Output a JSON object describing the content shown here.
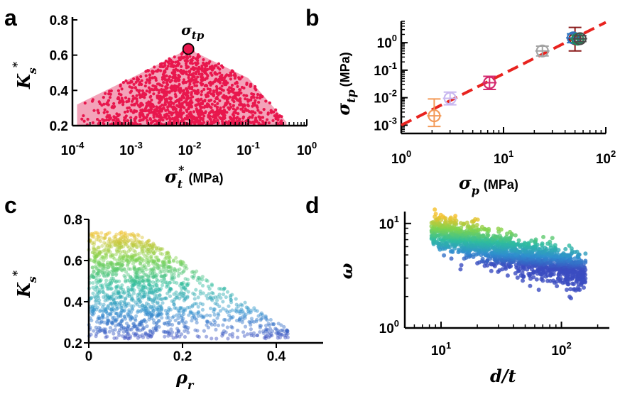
{
  "panel_labels": [
    "a",
    "b",
    "c",
    "d"
  ],
  "chart_data": [
    {
      "panel": "a",
      "type": "scatter",
      "xscale": "log",
      "xlim": [
        0.0001,
        1
      ],
      "ylim": [
        0.2,
        0.8
      ],
      "xticks": [
        "10^-4",
        "10^-3",
        "10^-2",
        "10^-1",
        "10^0"
      ],
      "yticks": [
        "0.2",
        "0.4",
        "0.6",
        "0.8"
      ],
      "xlabel": "σt* (MPa)",
      "ylabel": "Ks*",
      "marker_color": "#e8174d",
      "envelope_color": "#f3a3b9",
      "annotation": {
        "text": "σtp",
        "x": 0.0095,
        "y": 0.635
      },
      "envelope": [
        [
          0.00012,
          0.2
        ],
        [
          0.00012,
          0.32
        ],
        [
          0.001,
          0.47
        ],
        [
          0.0095,
          0.635
        ],
        [
          0.1,
          0.47
        ],
        [
          0.45,
          0.22
        ],
        [
          0.45,
          0.2
        ]
      ]
    },
    {
      "panel": "b",
      "type": "scatter",
      "xscale": "log",
      "yscale": "log",
      "xlim": [
        1,
        100
      ],
      "ylim": [
        0.0005,
        6
      ],
      "xticks": [
        "10^0",
        "10^1",
        "10^2"
      ],
      "yticks": [
        "10^-3",
        "10^-2",
        "10^-1",
        "10^0"
      ],
      "xlabel": "σp (MPa)",
      "ylabel": "σtp (MPa)",
      "fit_line": {
        "color": "#e8231f",
        "points": [
          [
            1,
            0.001
          ],
          [
            100,
            5.5
          ]
        ]
      },
      "points": [
        {
          "x": 2.1,
          "y": 0.0022,
          "yerr_low": 0.0009,
          "yerr_high": 0.009,
          "color": "#f39a58"
        },
        {
          "x": 3.0,
          "y": 0.0095,
          "yerr_low": 0.0055,
          "yerr_high": 0.016,
          "color": "#c9b8f0"
        },
        {
          "x": 7.3,
          "y": 0.035,
          "yerr_low": 0.02,
          "yerr_high": 0.06,
          "color": "#d5296e"
        },
        {
          "x": 24,
          "y": 0.5,
          "yerr_low": 0.33,
          "yerr_high": 0.75,
          "color": "#a3a3a3"
        },
        {
          "x": 50,
          "y": 1.4,
          "yerr_low": 0.5,
          "yerr_high": 3.6,
          "color": "#8b1c1c"
        },
        {
          "x": 48,
          "y": 1.5,
          "yerr_low": 1.0,
          "yerr_high": 2.1,
          "color": "#2f74c0"
        },
        {
          "x": 53,
          "y": 1.35,
          "yerr_low": 1.0,
          "yerr_high": 1.8,
          "color": "#1f8a5b"
        },
        {
          "x": 56,
          "y": 1.4,
          "yerr_low": 1.1,
          "yerr_high": 1.8,
          "color": "#4a4a4a"
        }
      ]
    },
    {
      "panel": "c",
      "type": "scatter",
      "xlim": [
        0,
        0.5
      ],
      "ylim": [
        0.2,
        0.8
      ],
      "xticks": [
        "0",
        "0.2",
        "0.4"
      ],
      "yticks": [
        "0.2",
        "0.4",
        "0.6",
        "0.8"
      ],
      "xlabel": "ρr",
      "ylabel": "Ks*",
      "colormap": [
        "#3b4cc0",
        "#2f8fce",
        "#2ebc9f",
        "#7fd34e",
        "#f5c02a"
      ],
      "color_by": "y"
    },
    {
      "panel": "d",
      "type": "scatter",
      "xscale": "log",
      "yscale": "log",
      "xlim": [
        5,
        250
      ],
      "ylim": [
        1,
        13
      ],
      "xticks": [
        "10^1",
        "10^2"
      ],
      "yticks": [
        "10^0",
        "10^1"
      ],
      "xlabel": "d/t",
      "ylabel": "ω",
      "colormap": [
        "#3b4cc0",
        "#2f8fce",
        "#2ebc9f",
        "#7fd34e",
        "#f5c02a"
      ],
      "color_by": "y"
    }
  ]
}
